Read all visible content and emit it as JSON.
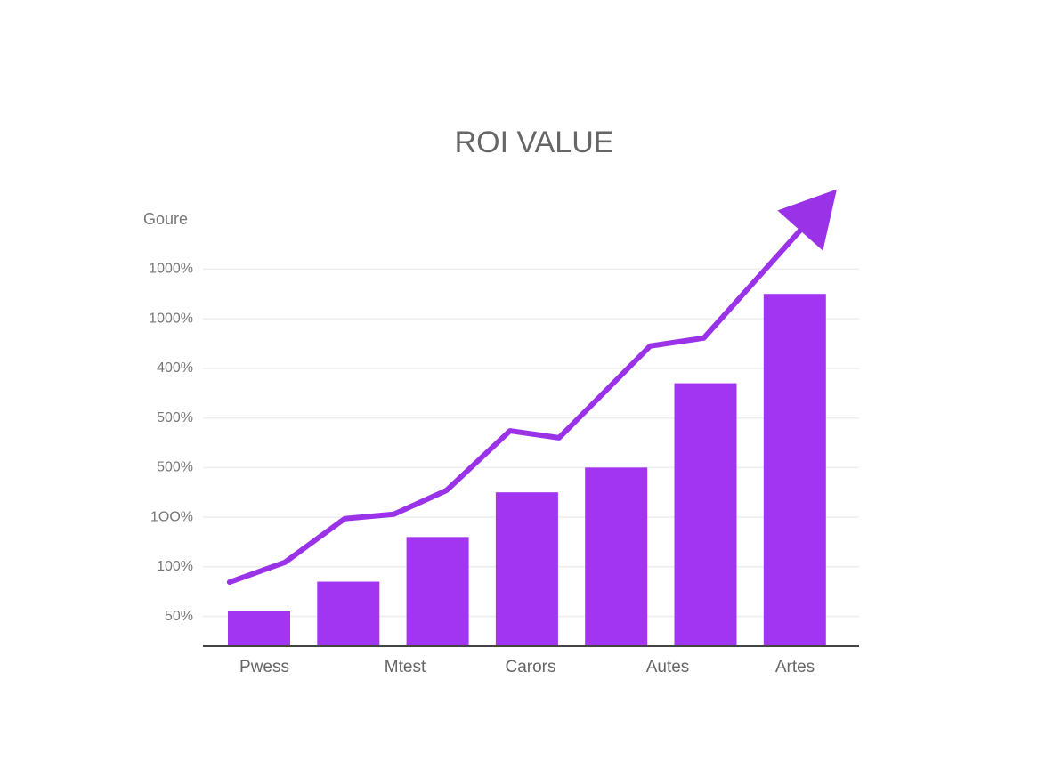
{
  "chart_data": {
    "type": "bar",
    "title": "ROI VALUE",
    "ylabel": "Goure",
    "categories": [
      "Pwess",
      null,
      "Mtest",
      "Carors",
      null,
      "Autes",
      "Artes"
    ],
    "values": [
      1.1,
      1.7,
      2.6,
      3.5,
      4.0,
      5.7,
      7.5
    ],
    "color": "#a235f2",
    "trend": {
      "color": "#9a33e8",
      "x": [
        -0.33,
        0.29,
        0.96,
        1.51,
        2.1,
        2.81,
        3.36,
        4.38,
        4.98,
        6.19,
        6.47
      ],
      "values": [
        1.69,
        2.09,
        2.97,
        3.06,
        3.54,
        4.74,
        4.6,
        6.45,
        6.61,
        9.04,
        9.61
      ]
    },
    "ylim": [
      0.4,
      9.8
    ],
    "yticks": [
      {
        "value": 1,
        "label": "50%"
      },
      {
        "value": 2,
        "label": "100%"
      },
      {
        "value": 3,
        "label": "1ОО%"
      },
      {
        "value": 4,
        "label": "500%"
      },
      {
        "value": 5,
        "label": "500%"
      },
      {
        "value": 6,
        "label": "400%"
      },
      {
        "value": 7,
        "label": "1000%"
      },
      {
        "value": 8,
        "label": "1000%"
      }
    ],
    "grid": true
  }
}
